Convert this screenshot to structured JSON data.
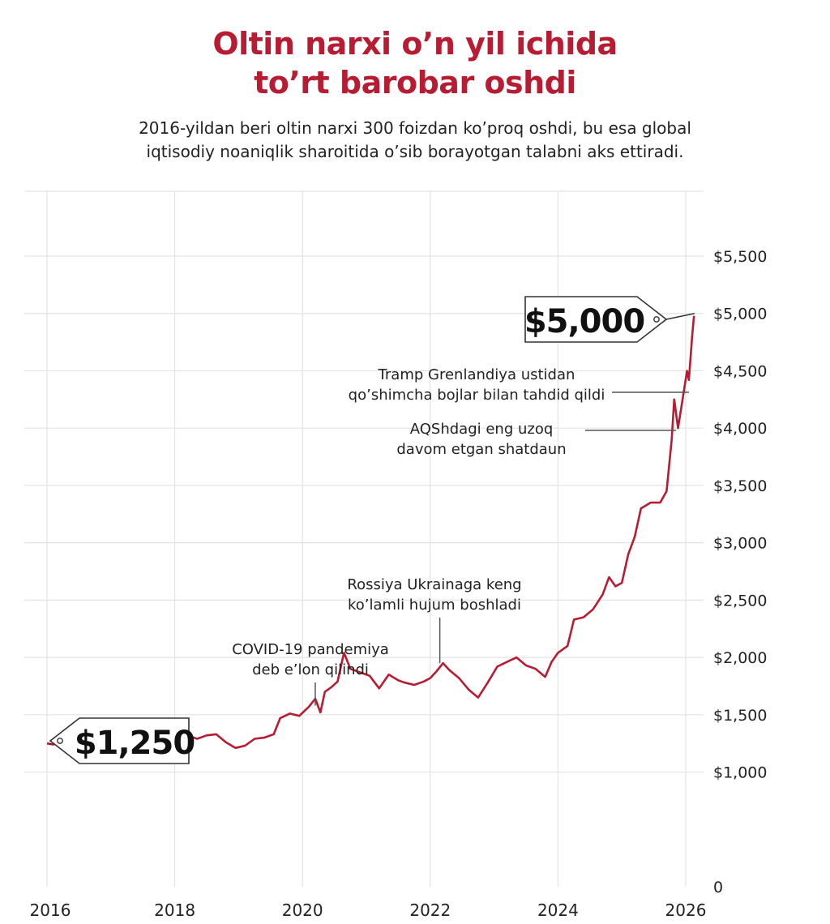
{
  "header": {
    "title_line1": "Oltin narxi o’n yil ichida",
    "title_line2": "to’rt barobar oshdi",
    "subtitle_line1": "2016-yildan beri oltin narxi 300 foizdan ko’proq oshdi, bu esa global",
    "subtitle_line2": "iqtisodiy noaniqlik sharoitida o’sib borayotgan talabni aks ettiradi."
  },
  "colors": {
    "accent": "#b81c32",
    "line": "#b81c32",
    "grid": "#e3e3e3",
    "text": "#1a1a1a"
  },
  "chart_data": {
    "type": "line",
    "title": "Oltin narxi o’n yil ichida to’rt barobar oshdi",
    "xlim": [
      2016,
      2026.3
    ],
    "ylim": [
      0,
      5500
    ],
    "grid": true,
    "y_axis_position": "right",
    "x_ticks": [
      2016,
      2018,
      2020,
      2022,
      2024,
      2026
    ],
    "x_tick_labels": [
      "2016",
      "2018",
      "2020",
      "2022",
      "2024",
      "2026"
    ],
    "y_ticks": [
      0,
      1000,
      1500,
      2000,
      2500,
      3000,
      3500,
      4000,
      4500,
      5000,
      5500
    ],
    "y_tick_labels": [
      "0",
      "$1,000",
      "$1,500",
      "$2,000",
      "$2,500",
      "$3,000",
      "$3,500",
      "$4,000",
      "$4,500",
      "$5,000",
      "$5,500"
    ],
    "series": [
      {
        "points": [
          [
            2016.0,
            1250
          ],
          [
            2016.1,
            1240
          ],
          [
            2016.2,
            1290
          ],
          [
            2016.3,
            1260
          ],
          [
            2016.4,
            1310
          ],
          [
            2016.5,
            1370
          ],
          [
            2016.6,
            1340
          ],
          [
            2016.75,
            1330
          ],
          [
            2016.9,
            1250
          ],
          [
            2017.0,
            1160
          ],
          [
            2017.15,
            1220
          ],
          [
            2017.3,
            1260
          ],
          [
            2017.45,
            1250
          ],
          [
            2017.6,
            1300
          ],
          [
            2017.75,
            1280
          ],
          [
            2017.9,
            1300
          ],
          [
            2018.05,
            1340
          ],
          [
            2018.2,
            1320
          ],
          [
            2018.35,
            1290
          ],
          [
            2018.5,
            1320
          ],
          [
            2018.65,
            1330
          ],
          [
            2018.8,
            1260
          ],
          [
            2018.95,
            1210
          ],
          [
            2019.1,
            1230
          ],
          [
            2019.25,
            1290
          ],
          [
            2019.4,
            1300
          ],
          [
            2019.55,
            1330
          ],
          [
            2019.65,
            1470
          ],
          [
            2019.8,
            1510
          ],
          [
            2019.95,
            1490
          ],
          [
            2020.1,
            1570
          ],
          [
            2020.2,
            1640
          ],
          [
            2020.28,
            1520
          ],
          [
            2020.35,
            1700
          ],
          [
            2020.45,
            1740
          ],
          [
            2020.55,
            1790
          ],
          [
            2020.65,
            2040
          ],
          [
            2020.75,
            1900
          ],
          [
            2020.9,
            1870
          ],
          [
            2021.05,
            1840
          ],
          [
            2021.2,
            1730
          ],
          [
            2021.35,
            1850
          ],
          [
            2021.5,
            1800
          ],
          [
            2021.6,
            1780
          ],
          [
            2021.75,
            1760
          ],
          [
            2021.9,
            1790
          ],
          [
            2022.0,
            1820
          ],
          [
            2022.1,
            1880
          ],
          [
            2022.2,
            1950
          ],
          [
            2022.3,
            1890
          ],
          [
            2022.45,
            1820
          ],
          [
            2022.6,
            1720
          ],
          [
            2022.75,
            1650
          ],
          [
            2022.9,
            1780
          ],
          [
            2023.05,
            1920
          ],
          [
            2023.2,
            1960
          ],
          [
            2023.35,
            2000
          ],
          [
            2023.5,
            1930
          ],
          [
            2023.65,
            1900
          ],
          [
            2023.8,
            1830
          ],
          [
            2023.9,
            1960
          ],
          [
            2024.0,
            2040
          ],
          [
            2024.15,
            2100
          ],
          [
            2024.25,
            2330
          ],
          [
            2024.4,
            2350
          ],
          [
            2024.55,
            2420
          ],
          [
            2024.7,
            2550
          ],
          [
            2024.8,
            2700
          ],
          [
            2024.9,
            2620
          ],
          [
            2025.0,
            2650
          ],
          [
            2025.1,
            2900
          ],
          [
            2025.2,
            3050
          ],
          [
            2025.3,
            3300
          ],
          [
            2025.45,
            3350
          ],
          [
            2025.6,
            3350
          ],
          [
            2025.7,
            3450
          ],
          [
            2025.78,
            3900
          ],
          [
            2025.82,
            4250
          ],
          [
            2025.88,
            4000
          ],
          [
            2025.95,
            4250
          ],
          [
            2026.02,
            4500
          ],
          [
            2026.05,
            4420
          ],
          [
            2026.1,
            4800
          ],
          [
            2026.13,
            4980
          ]
        ]
      }
    ],
    "value_labels": [
      {
        "text": "$1,250",
        "x": 2016.0,
        "y": 1250
      },
      {
        "text": "$5,000",
        "x": 2026.1,
        "y": 5000
      }
    ],
    "annotations": [
      {
        "lines": [
          "COVID-19 pandemiya",
          "deb e’lon qilindi"
        ],
        "x": 2020.2,
        "y": 1580
      },
      {
        "lines": [
          "Rossiya Ukrainaga keng",
          "ko’lamli hujum boshladi"
        ],
        "x": 2022.15,
        "y": 1950
      },
      {
        "lines": [
          "AQShdagi eng uzoq",
          "davom etgan shatdaun"
        ],
        "x": 2025.85,
        "y": 4100
      },
      {
        "lines": [
          "Tramp Grenlandiya ustidan",
          "qo’shimcha bojlar bilan tahdid qildi"
        ],
        "x": 2026.05,
        "y": 4520
      }
    ]
  }
}
